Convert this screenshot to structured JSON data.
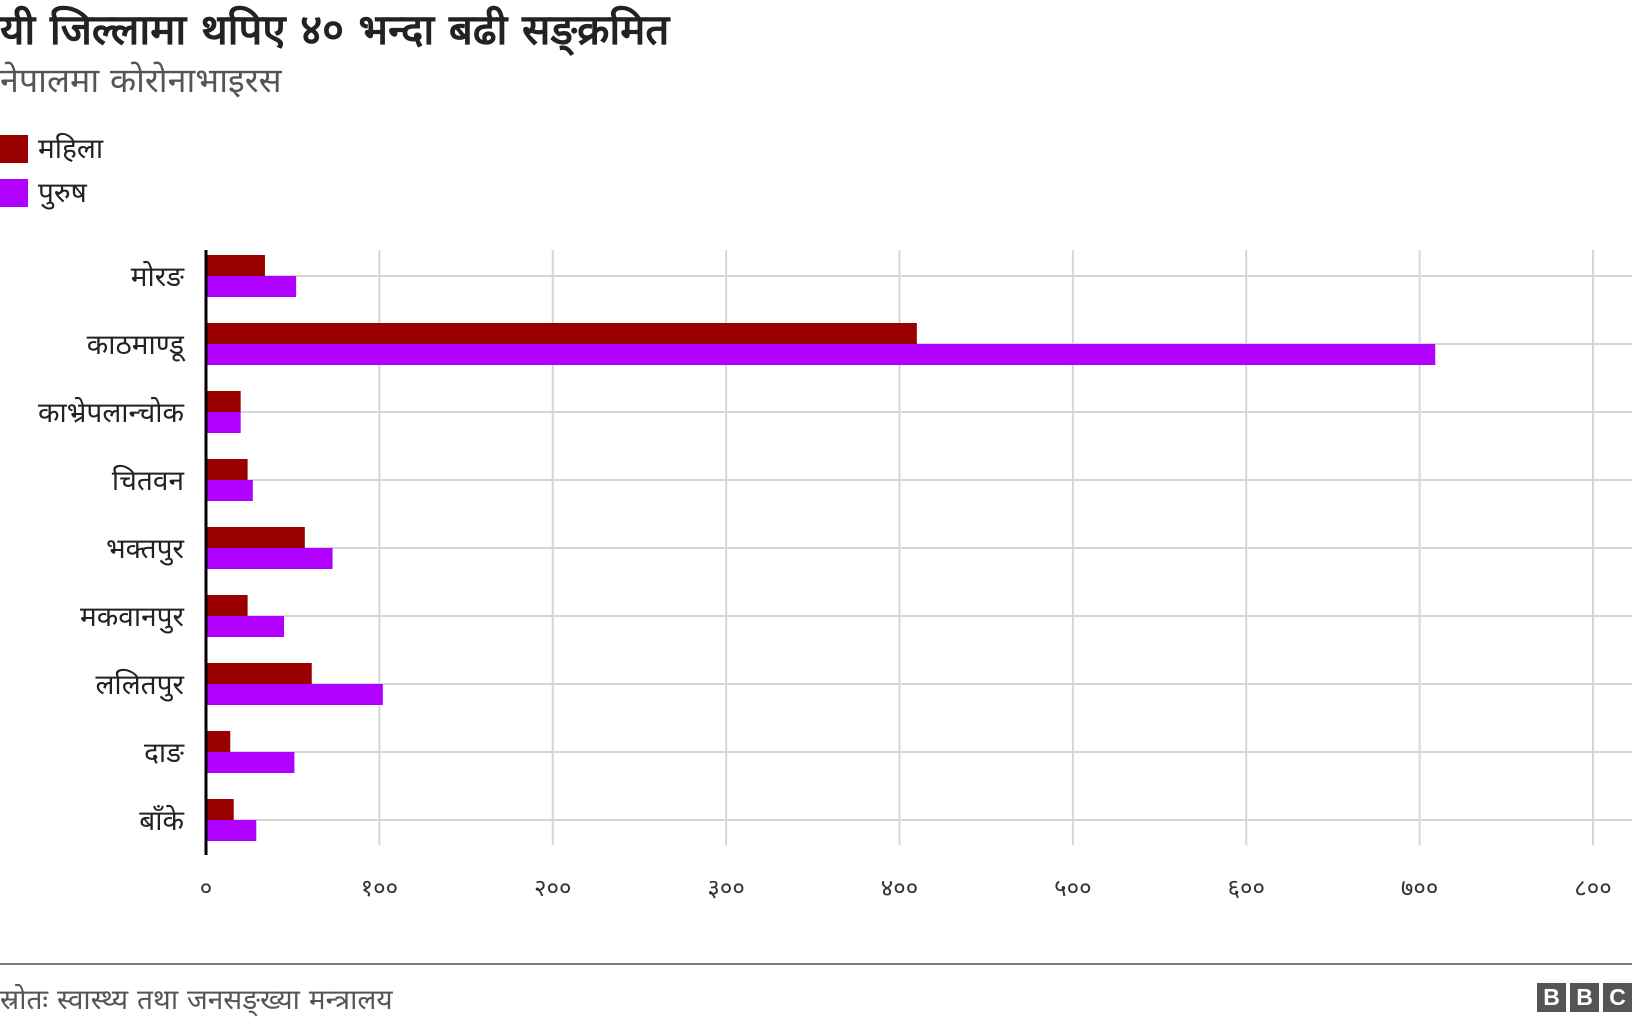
{
  "title": "यी जिल्लामा थपिए ४० भन्दा बढी सङ्क्रमित",
  "subtitle": "नेपालमा कोरोनाभाइरस",
  "source": "स्रोतः स्वास्थ्य तथा जनसङ्ख्या मन्त्रालय",
  "logo": [
    "B",
    "B",
    "C"
  ],
  "chart_data": {
    "type": "bar",
    "orientation": "horizontal",
    "categories": [
      "मोरङ",
      "काठमाण्डू",
      "काभ्रेपलान्चोक",
      "चितवन",
      "भक्तपुर",
      "मकवानपुर",
      "ललितपुर",
      "दाङ",
      "बाँके"
    ],
    "series": [
      {
        "name": "महिला",
        "color": "#990000",
        "values": [
          34,
          410,
          20,
          24,
          57,
          24,
          61,
          14,
          16
        ]
      },
      {
        "name": "पुरुष",
        "color": "#b000ff",
        "values": [
          52,
          709,
          20,
          27,
          73,
          45,
          102,
          51,
          29
        ]
      }
    ],
    "xlim": [
      0,
      800
    ],
    "ticks": [
      0,
      100,
      200,
      300,
      400,
      500,
      600,
      700,
      800
    ],
    "tick_labels": [
      "०",
      "१००",
      "२००",
      "३००",
      "४००",
      "५००",
      "६००",
      "७००",
      "८००"
    ],
    "grid": true,
    "legend_position": "top-left"
  }
}
